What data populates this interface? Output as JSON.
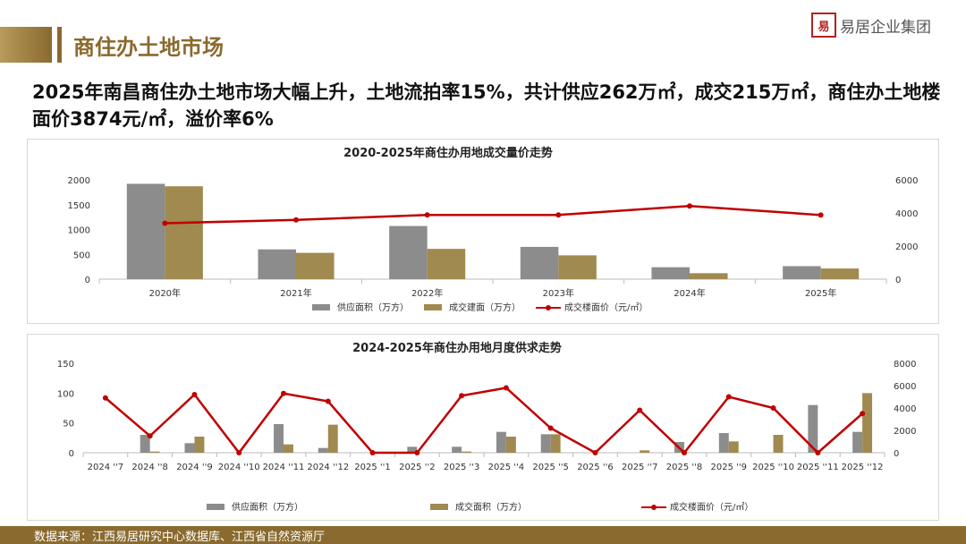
{
  "header": {
    "title": "商住办土地市场"
  },
  "logo": {
    "seal_text": "易",
    "name": "易居企业集团"
  },
  "headline": "2025年南昌商住办土地市场大幅上升，土地流拍率15%，共计供应262万㎡，成交215万㎡，商住办土地楼面价3874元/㎡，溢价率6%",
  "footer": {
    "source": "数据来源：江西易居研究中心数据库、江西省自然资源厅"
  },
  "colors": {
    "supply": "#8c8c8c",
    "deal": "#a08a4f",
    "price": "#c00000",
    "brand": "#8a6a2e"
  },
  "chart_data": [
    {
      "type": "bar",
      "title": "2020-2025年商住办用地成交量价走势",
      "categories": [
        "2020年",
        "2021年",
        "2022年",
        "2023年",
        "2024年",
        "2025年"
      ],
      "series": [
        {
          "name": "供应面积（万方）",
          "kind": "bar",
          "axis": "left",
          "values": [
            1920,
            600,
            1070,
            650,
            240,
            262
          ]
        },
        {
          "name": "成交建面（万方）",
          "kind": "bar",
          "axis": "left",
          "values": [
            1870,
            530,
            610,
            480,
            120,
            215
          ]
        },
        {
          "name": "成交楼面价（元/㎡）",
          "kind": "line",
          "axis": "right",
          "values": [
            3380,
            3580,
            3880,
            3880,
            4420,
            3874
          ]
        }
      ],
      "yleft": {
        "min": 0,
        "max": 2000,
        "ticks": [
          0,
          500,
          1000,
          1500,
          2000
        ]
      },
      "yright": {
        "min": 0,
        "max": 6000,
        "ticks": [
          0,
          2000,
          4000,
          6000
        ]
      },
      "legend": "bottom",
      "grid": false
    },
    {
      "type": "bar",
      "title": "2024-2025年商住办用地月度供求走势",
      "categories": [
        "2024 ''7",
        "2024 ''8",
        "2024 ''9",
        "2024 ''10",
        "2024 ''11",
        "2024 ''12",
        "2025 ''1",
        "2025 ''2",
        "2025 ''3",
        "2025 ''4",
        "2025 ''5",
        "2025 ''6",
        "2025 ''7",
        "2025 ''8",
        "2025 ''9",
        "2025 ''10",
        "2025 ''11",
        "2025 ''12"
      ],
      "series": [
        {
          "name": "供应面积（万方）",
          "kind": "bar",
          "axis": "left",
          "values": [
            0,
            30,
            16,
            0,
            48,
            8,
            0,
            10,
            10,
            35,
            31,
            0,
            0,
            18,
            33,
            0,
            80,
            35
          ]
        },
        {
          "name": "成交面积（万方）",
          "kind": "bar",
          "axis": "left",
          "values": [
            0,
            2,
            27,
            0,
            14,
            47,
            0,
            0,
            2,
            27,
            31,
            0,
            4,
            0,
            19,
            30,
            0,
            100
          ]
        },
        {
          "name": "成交楼面价（元/㎡）",
          "kind": "line",
          "axis": "right",
          "values": [
            4900,
            1500,
            5200,
            0,
            5300,
            4600,
            0,
            0,
            5100,
            5800,
            2200,
            0,
            3800,
            0,
            5000,
            4000,
            0,
            3500
          ]
        }
      ],
      "yleft": {
        "min": 0,
        "max": 150,
        "ticks": [
          0,
          50,
          100,
          150
        ]
      },
      "yright": {
        "min": 0,
        "max": 8000,
        "ticks": [
          0,
          2000,
          4000,
          6000,
          8000
        ]
      },
      "legend": "bottom",
      "grid": false
    }
  ]
}
